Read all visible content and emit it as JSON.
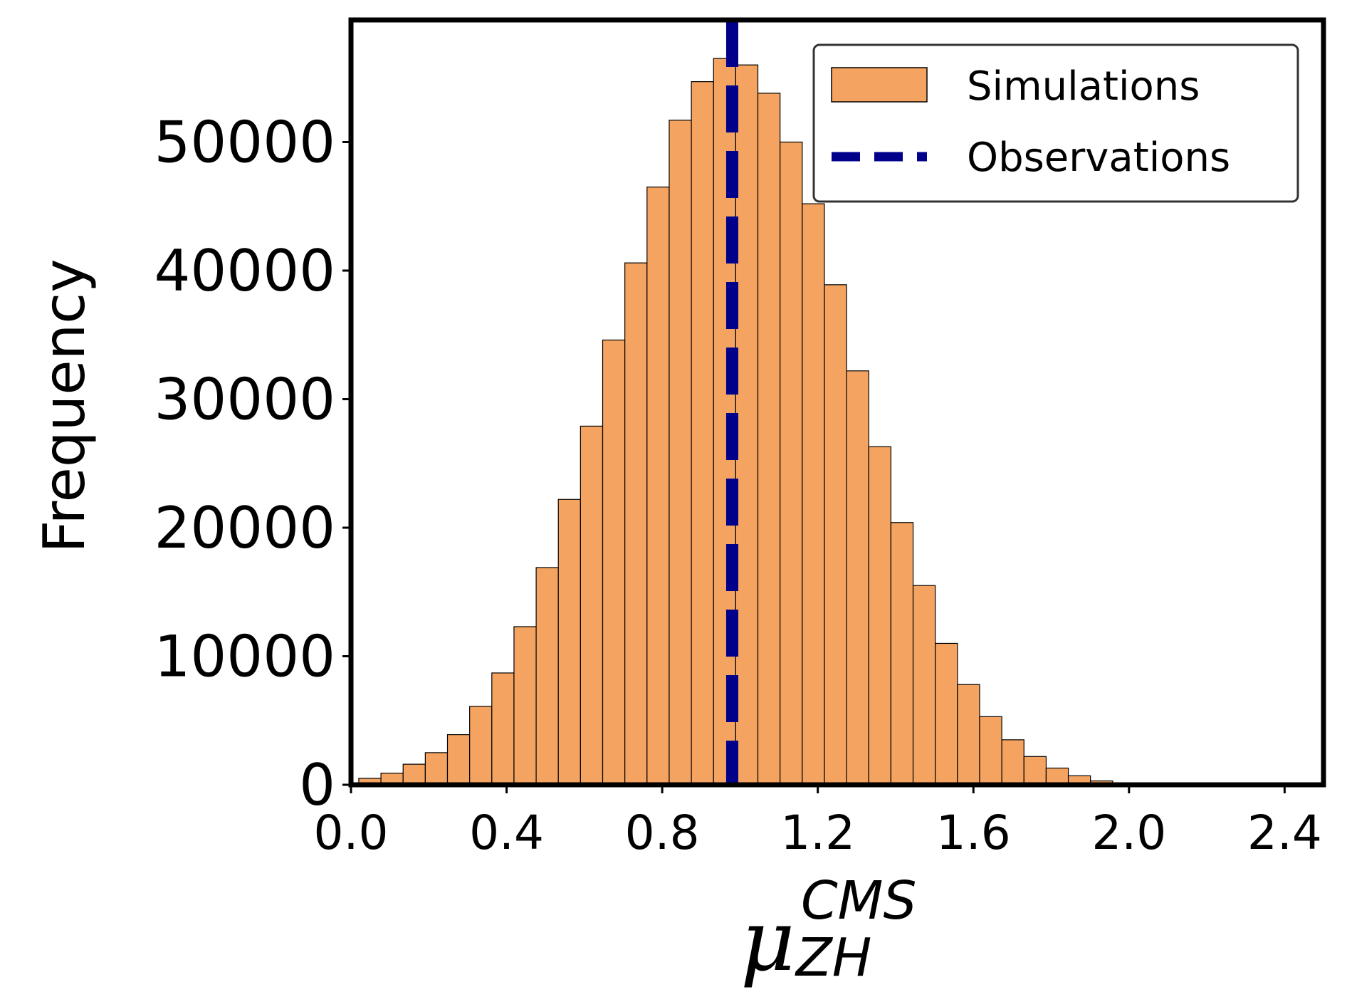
{
  "chart_data": {
    "type": "bar",
    "title": "",
    "ylabel": "Frequency",
    "xlabel": {
      "base": "μ",
      "superscript": "CMS",
      "subscript": "ZH"
    },
    "xlim": [
      0.0,
      2.5
    ],
    "ylim": [
      0,
      59500
    ],
    "grid": false,
    "legend_position": "top-right",
    "x_ticks": [
      0.0,
      0.4,
      0.8,
      1.2,
      1.6,
      2.0,
      2.4
    ],
    "x_tick_labels": [
      "0.0",
      "0.4",
      "0.8",
      "1.2",
      "1.6",
      "2.0",
      "2.4"
    ],
    "y_ticks": [
      0,
      10000,
      20000,
      30000,
      40000,
      50000
    ],
    "y_tick_labels": [
      "0",
      "10000",
      "20000",
      "30000",
      "40000",
      "50000"
    ],
    "bin_start": 0.02,
    "bin_width": 0.057,
    "series": [
      {
        "name": "Simulations",
        "kind": "histogram",
        "color": "#f4a460",
        "edgecolor": "#000000",
        "values": [
          500,
          900,
          1600,
          2500,
          3900,
          6100,
          8700,
          12300,
          16900,
          22200,
          27900,
          34600,
          40600,
          46500,
          51700,
          54700,
          56500,
          56000,
          53800,
          50000,
          45200,
          38900,
          32200,
          26300,
          20400,
          15500,
          11000,
          7800,
          5300,
          3500,
          2200,
          1300,
          700,
          300
        ]
      },
      {
        "name": "Observations",
        "kind": "vline",
        "color": "#00008b",
        "x": 0.98
      }
    ]
  }
}
